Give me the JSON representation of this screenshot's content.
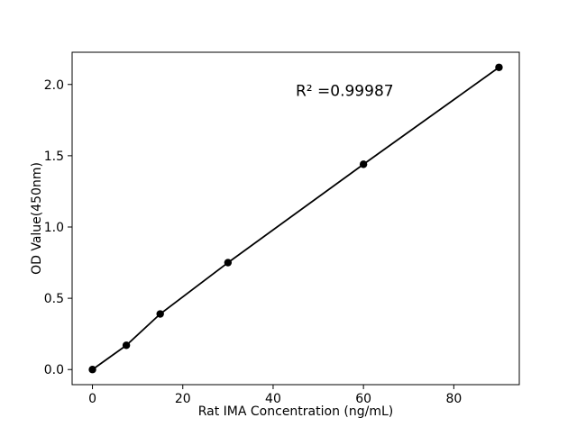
{
  "figure": {
    "background": "#ffffff"
  },
  "chart_data": {
    "type": "scatter",
    "title": "",
    "xlabel": "Rat IMA Concentration (ng/mL)",
    "ylabel": "OD Value(450nm)",
    "x": [
      0,
      7.5,
      15,
      30,
      60,
      90
    ],
    "y": [
      0.0,
      0.17,
      0.39,
      0.75,
      1.44,
      2.12
    ],
    "xlim": [
      -4.5,
      94.5
    ],
    "ylim": [
      -0.106,
      2.226
    ],
    "xticks": [
      0,
      20,
      40,
      60,
      80
    ],
    "xtick_labels": [
      "0",
      "20",
      "40",
      "60",
      "80"
    ],
    "yticks": [
      0.0,
      0.5,
      1.0,
      1.5,
      2.0
    ],
    "ytick_labels": [
      "0.0",
      "0.5",
      "1.0",
      "1.5",
      "2.0"
    ],
    "grid": false,
    "legend": "none",
    "line_color": "#000000",
    "marker_color": "#000000",
    "axis_color": "#000000",
    "marker": "circle",
    "annotation": {
      "text": "R² =0.99987",
      "x": 45,
      "y": 1.92
    }
  }
}
